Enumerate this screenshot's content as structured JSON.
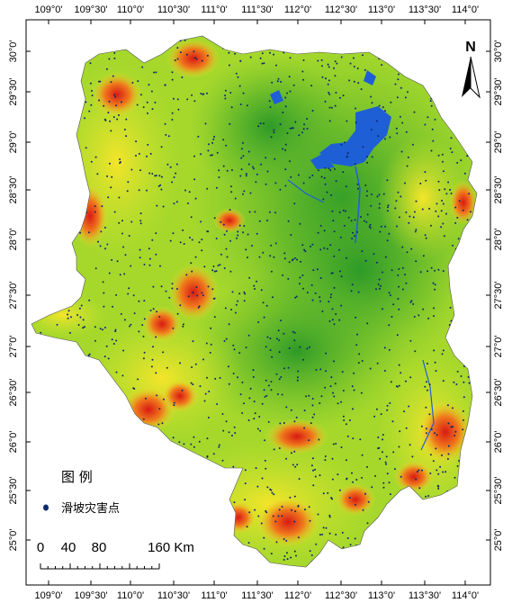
{
  "map": {
    "top_ticks": [
      "109°0'",
      "109°30'",
      "110°0'",
      "110°30'",
      "111°0'",
      "111°30'",
      "112°0'",
      "112°30'",
      "113°0'",
      "113°30'",
      "114°0'"
    ],
    "bottom_ticks": [
      "109°0'",
      "109°30'",
      "110°0'",
      "110°30'",
      "111°0'",
      "111°30'",
      "112°0'",
      "112°30'",
      "113°0'",
      "113°30'",
      "114°0'"
    ],
    "left_ticks": [
      "30°0'",
      "29°30'",
      "29°0'",
      "28°30'",
      "28°0'",
      "27°30'",
      "27°0'",
      "26°30'",
      "26°0'",
      "25°30'",
      "25°0'"
    ],
    "right_ticks": [
      "30°0'",
      "29°30'",
      "29°0'",
      "28°30'",
      "28°0'",
      "27°30'",
      "27°0'",
      "26°30'",
      "26°0'",
      "25°30'",
      "25°0'"
    ],
    "north_arrow": "N",
    "legend": {
      "title": "图 例",
      "item_label": "滑坡灾害点",
      "item_color": "#0b2a6e"
    },
    "scale_bar": {
      "labels": [
        "0",
        "40",
        "80",
        "160 Km"
      ]
    },
    "colors": {
      "low": "#3aa52a",
      "mid": "#b5df2c",
      "high_mid": "#f0e02a",
      "high": "#f08a1e",
      "very_high": "#e02a18",
      "water": "#1e5fd6",
      "points": "#0b2a6e"
    }
  }
}
